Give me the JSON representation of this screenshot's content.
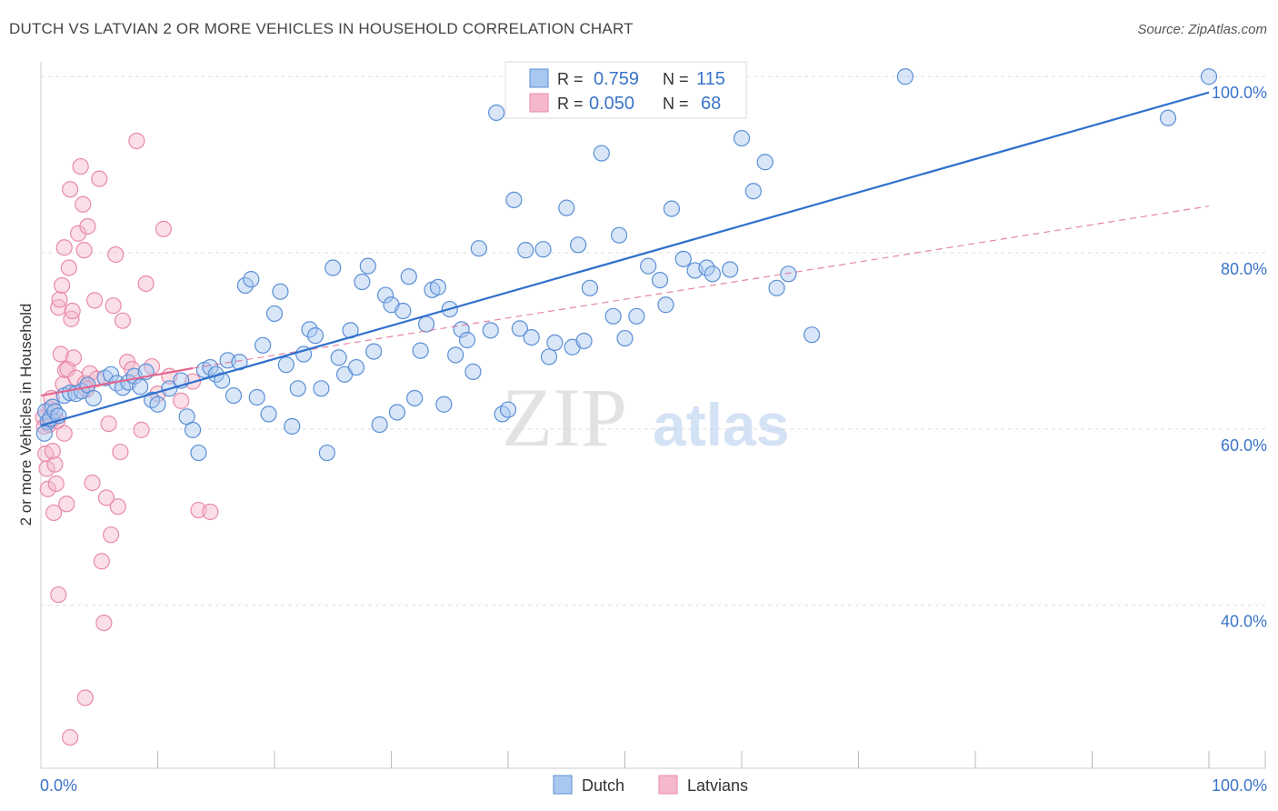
{
  "title": "DUTCH VS LATVIAN 2 OR MORE VEHICLES IN HOUSEHOLD CORRELATION CHART",
  "source": "Source: ZipAtlas.com",
  "watermark": {
    "zip": "ZIP",
    "atlas": "atlas"
  },
  "colors": {
    "dutch_fill": "#a9c8f0",
    "dutch_stroke": "#5b8fd6",
    "dutch_line": "#2f6fcc",
    "latvian_fill": "#f5b8ca",
    "latvian_stroke": "#e98aa8",
    "latvian_line": "#e0668f",
    "value_blue": "#3a74c9"
  },
  "legend_top": {
    "rows": [
      {
        "r_label": "R =",
        "r_value": "0.759",
        "n_label": "N =",
        "n_value": "115"
      },
      {
        "r_label": "R =",
        "r_value": "0.050",
        "n_label": "N =",
        "n_value": "68"
      }
    ]
  },
  "legend_bottom": {
    "items": [
      "Dutch",
      "Latvians"
    ]
  },
  "chart_data": {
    "type": "scatter",
    "title": "DUTCH VS LATVIAN 2 OR MORE VEHICLES IN HOUSEHOLD CORRELATION CHART",
    "xlabel": "",
    "ylabel": "2 or more Vehicles in Household",
    "xlim": [
      0,
      100
    ],
    "ylim": [
      21.5,
      102.5
    ],
    "x_tick_labels": [
      "0.0%",
      "100.0%"
    ],
    "y_ticks": [
      40,
      60,
      80,
      100
    ],
    "y_tick_labels": [
      "40.0%",
      "60.0%",
      "80.0%",
      "100.0%"
    ],
    "grid": true,
    "legend_position": "top-center",
    "series": [
      {
        "name": "Dutch",
        "r": 0.759,
        "n": 115,
        "trend": {
          "x": [
            0,
            100
          ],
          "y": [
            60.4,
            98.2
          ]
        },
        "points": [
          [
            0.4,
            62.0
          ],
          [
            0.6,
            60.8
          ],
          [
            0.8,
            61.2
          ],
          [
            1.0,
            62.5
          ],
          [
            1.2,
            62.0
          ],
          [
            1.5,
            61.5
          ],
          [
            2.0,
            63.8
          ],
          [
            2.5,
            64.1
          ],
          [
            3.0,
            64.0
          ],
          [
            3.5,
            64.3
          ],
          [
            4.0,
            65.0
          ],
          [
            4.5,
            63.5
          ],
          [
            5.5,
            65.8
          ],
          [
            6.0,
            66.2
          ],
          [
            6.5,
            65.2
          ],
          [
            7.0,
            64.7
          ],
          [
            7.5,
            65.3
          ],
          [
            8.0,
            66.0
          ],
          [
            8.5,
            64.8
          ],
          [
            9.0,
            66.5
          ],
          [
            9.5,
            63.3
          ],
          [
            10.0,
            62.8
          ],
          [
            11.0,
            64.6
          ],
          [
            12.0,
            65.5
          ],
          [
            12.5,
            61.4
          ],
          [
            13.0,
            59.9
          ],
          [
            13.5,
            57.3
          ],
          [
            14.0,
            66.7
          ],
          [
            14.5,
            67.0
          ],
          [
            15.0,
            66.2
          ],
          [
            15.5,
            65.5
          ],
          [
            16.0,
            67.8
          ],
          [
            16.5,
            63.8
          ],
          [
            17.0,
            67.6
          ],
          [
            17.5,
            76.3
          ],
          [
            18.0,
            77.0
          ],
          [
            18.5,
            63.6
          ],
          [
            19.0,
            69.5
          ],
          [
            19.5,
            61.7
          ],
          [
            20.0,
            73.1
          ],
          [
            20.5,
            75.6
          ],
          [
            21.0,
            67.3
          ],
          [
            21.5,
            60.3
          ],
          [
            22.0,
            64.6
          ],
          [
            22.5,
            68.5
          ],
          [
            23.0,
            71.3
          ],
          [
            23.5,
            70.6
          ],
          [
            24.0,
            64.6
          ],
          [
            24.5,
            57.3
          ],
          [
            25.0,
            78.3
          ],
          [
            25.5,
            68.1
          ],
          [
            26.0,
            66.2
          ],
          [
            26.5,
            71.2
          ],
          [
            27.0,
            67.0
          ],
          [
            27.5,
            76.7
          ],
          [
            28.0,
            78.5
          ],
          [
            28.5,
            68.8
          ],
          [
            29.0,
            60.5
          ],
          [
            29.5,
            75.2
          ],
          [
            30.0,
            74.1
          ],
          [
            30.5,
            61.9
          ],
          [
            31.0,
            73.4
          ],
          [
            31.5,
            77.3
          ],
          [
            32.0,
            63.5
          ],
          [
            32.5,
            68.9
          ],
          [
            33.0,
            71.9
          ],
          [
            33.5,
            75.8
          ],
          [
            34.0,
            76.1
          ],
          [
            34.5,
            62.8
          ],
          [
            35.0,
            73.6
          ],
          [
            35.5,
            68.4
          ],
          [
            36.0,
            71.3
          ],
          [
            36.5,
            70.1
          ],
          [
            37.0,
            66.5
          ],
          [
            37.5,
            80.5
          ],
          [
            38.5,
            71.2
          ],
          [
            39.0,
            95.9
          ],
          [
            39.5,
            61.7
          ],
          [
            40.0,
            62.2
          ],
          [
            40.5,
            86.0
          ],
          [
            41.0,
            71.4
          ],
          [
            41.5,
            80.3
          ],
          [
            42.0,
            70.4
          ],
          [
            43.0,
            80.4
          ],
          [
            43.5,
            68.2
          ],
          [
            44.0,
            69.8
          ],
          [
            45.0,
            85.1
          ],
          [
            45.5,
            69.3
          ],
          [
            46.0,
            80.9
          ],
          [
            46.5,
            70.0
          ],
          [
            47.0,
            76.0
          ],
          [
            48.0,
            91.3
          ],
          [
            49.0,
            72.8
          ],
          [
            49.5,
            82.0
          ],
          [
            50.0,
            70.3
          ],
          [
            51.0,
            72.8
          ],
          [
            52.0,
            78.5
          ],
          [
            53.0,
            76.9
          ],
          [
            53.5,
            74.1
          ],
          [
            54.0,
            85.0
          ],
          [
            55.0,
            79.3
          ],
          [
            56.0,
            78.0
          ],
          [
            57.0,
            78.3
          ],
          [
            57.5,
            77.6
          ],
          [
            59.0,
            78.1
          ],
          [
            60.0,
            93.0
          ],
          [
            61.0,
            87.0
          ],
          [
            62.0,
            90.3
          ],
          [
            63.0,
            76.0
          ],
          [
            64.0,
            77.6
          ],
          [
            66.0,
            70.7
          ],
          [
            74.0,
            100.0
          ],
          [
            96.5,
            95.3
          ],
          [
            100.0,
            100.0
          ],
          [
            0.3,
            59.5
          ]
        ]
      },
      {
        "name": "Latvians",
        "r": 0.05,
        "n": 68,
        "trend_solid": {
          "x": [
            0,
            13
          ],
          "y": [
            63.8,
            66.9
          ]
        },
        "trend_dashed": {
          "x": [
            13,
            100
          ],
          "y": [
            66.9,
            85.3
          ]
        },
        "points": [
          [
            0.2,
            61.3
          ],
          [
            0.3,
            60.3
          ],
          [
            0.4,
            57.2
          ],
          [
            0.5,
            55.5
          ],
          [
            0.6,
            53.2
          ],
          [
            0.7,
            60.5
          ],
          [
            0.8,
            62.3
          ],
          [
            0.9,
            63.5
          ],
          [
            1.0,
            61.1
          ],
          [
            1.1,
            50.5
          ],
          [
            1.2,
            56.0
          ],
          [
            1.3,
            53.8
          ],
          [
            1.4,
            60.9
          ],
          [
            1.5,
            73.8
          ],
          [
            1.6,
            74.7
          ],
          [
            1.7,
            68.5
          ],
          [
            1.8,
            76.3
          ],
          [
            1.9,
            65.1
          ],
          [
            2.0,
            80.6
          ],
          [
            2.1,
            66.7
          ],
          [
            2.2,
            51.5
          ],
          [
            2.3,
            66.8
          ],
          [
            2.4,
            78.3
          ],
          [
            2.5,
            87.2
          ],
          [
            2.6,
            72.5
          ],
          [
            2.7,
            73.4
          ],
          [
            2.8,
            68.1
          ],
          [
            3.0,
            65.8
          ],
          [
            3.2,
            82.2
          ],
          [
            3.4,
            89.8
          ],
          [
            3.6,
            85.5
          ],
          [
            3.7,
            80.3
          ],
          [
            3.8,
            65.2
          ],
          [
            3.9,
            64.5
          ],
          [
            4.0,
            83.0
          ],
          [
            4.2,
            66.3
          ],
          [
            4.4,
            53.9
          ],
          [
            4.6,
            74.6
          ],
          [
            4.8,
            65.7
          ],
          [
            5.0,
            88.4
          ],
          [
            5.2,
            45.0
          ],
          [
            5.4,
            38.0
          ],
          [
            5.6,
            52.2
          ],
          [
            5.8,
            60.6
          ],
          [
            6.0,
            48.0
          ],
          [
            6.2,
            74.0
          ],
          [
            6.4,
            79.8
          ],
          [
            6.6,
            51.2
          ],
          [
            6.8,
            57.4
          ],
          [
            7.0,
            72.3
          ],
          [
            7.4,
            67.6
          ],
          [
            7.8,
            66.8
          ],
          [
            8.2,
            92.7
          ],
          [
            8.6,
            59.9
          ],
          [
            9.0,
            76.5
          ],
          [
            9.5,
            67.1
          ],
          [
            10.0,
            64.0
          ],
          [
            10.5,
            82.7
          ],
          [
            11.0,
            66.0
          ],
          [
            12.0,
            63.2
          ],
          [
            13.0,
            65.4
          ],
          [
            13.5,
            50.8
          ],
          [
            14.5,
            50.6
          ],
          [
            1.5,
            41.2
          ],
          [
            3.8,
            29.5
          ],
          [
            2.5,
            25.0
          ],
          [
            1.0,
            57.5
          ],
          [
            2.0,
            59.5
          ]
        ]
      }
    ]
  }
}
